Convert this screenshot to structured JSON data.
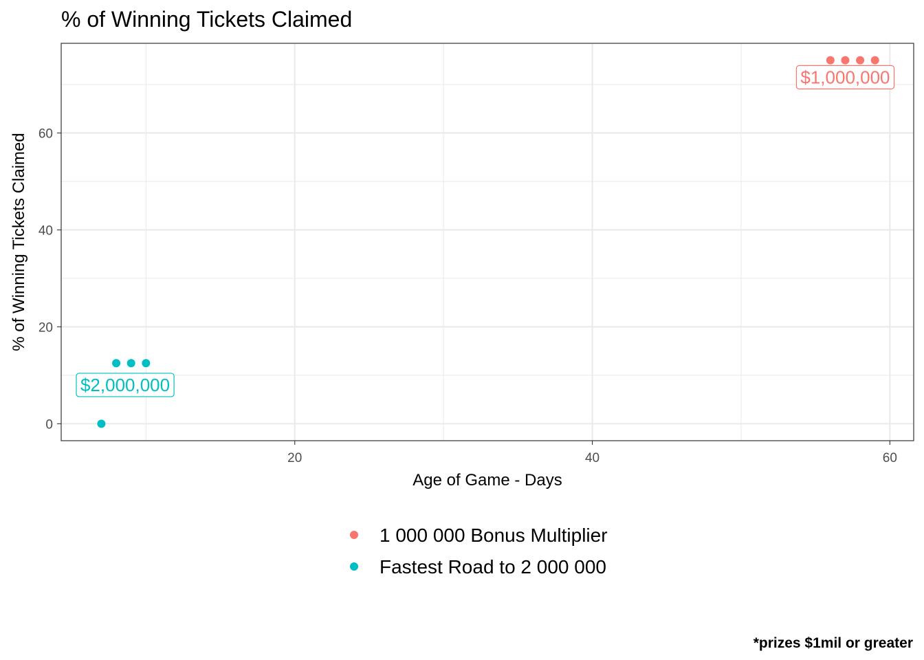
{
  "chart_data": {
    "type": "scatter",
    "title": "% of Winning Tickets Claimed",
    "xlabel": "Age of Game - Days",
    "ylabel": "% of Winning Tickets Claimed",
    "caption": "*prizes $1mil or greater",
    "xlim": [
      4.3,
      61.6
    ],
    "ylim": [
      -3.5,
      78.5
    ],
    "x_ticks": [
      20,
      40,
      60
    ],
    "y_ticks": [
      0,
      20,
      40,
      60
    ],
    "grid": true,
    "legend_position": "bottom",
    "series": [
      {
        "name": " 1 000 000 Bonus Multiplier",
        "color": "#F8766D",
        "points": [
          {
            "x": 56,
            "y": 75
          },
          {
            "x": 57,
            "y": 75
          },
          {
            "x": 58,
            "y": 75
          },
          {
            "x": 59,
            "y": 75
          }
        ],
        "label": {
          "text": "$1,000,000",
          "x": 57,
          "y": 71.5
        }
      },
      {
        "name": "Fastest Road to  2 000 000",
        "color": "#00BFC4",
        "points": [
          {
            "x": 7,
            "y": 0
          },
          {
            "x": 8,
            "y": 12.5
          },
          {
            "x": 9,
            "y": 12.5
          },
          {
            "x": 10,
            "y": 12.5
          }
        ],
        "label": {
          "text": "$2,000,000",
          "x": 8.6,
          "y": 8
        }
      }
    ]
  }
}
